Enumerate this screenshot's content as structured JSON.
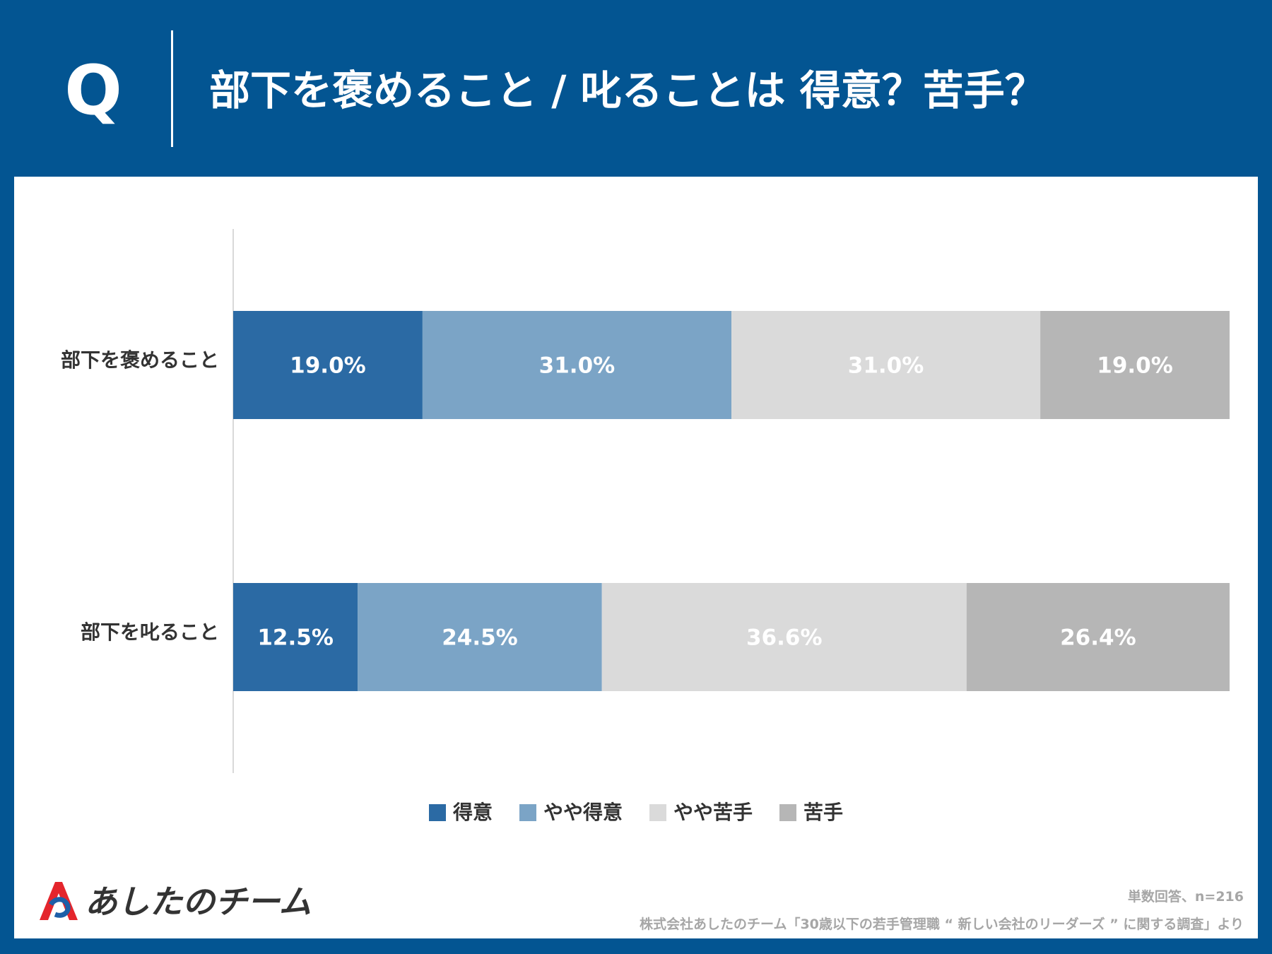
{
  "header": {
    "q_mark": "Q",
    "title": "部下を褒めること / 叱ることは 得意？苦手？"
  },
  "chart_data": {
    "type": "bar",
    "orientation": "horizontal-stacked-100",
    "categories": [
      "部下を褒めること",
      "部下を叱ること"
    ],
    "series": [
      {
        "name": "得意",
        "color": "#2b6aa4",
        "label_color": "#ffffff",
        "values": [
          19.0,
          12.5
        ],
        "labels": [
          "19.0%",
          "12.5%"
        ]
      },
      {
        "name": "やや得意",
        "color": "#7ba4c6",
        "label_color": "#ffffff",
        "values": [
          31.0,
          24.5
        ],
        "labels": [
          "31.0%",
          "24.5%"
        ]
      },
      {
        "name": "やや苦手",
        "color": "#dadada",
        "label_color": "#ffffff",
        "values": [
          31.0,
          36.6
        ],
        "labels": [
          "31.0%",
          "36.6%"
        ]
      },
      {
        "name": "苦手",
        "color": "#b6b6b6",
        "label_color": "#ffffff",
        "values": [
          19.0,
          26.4
        ],
        "labels": [
          "19.0%",
          "26.4%"
        ]
      }
    ],
    "xlim": [
      0,
      100
    ],
    "legend_position": "bottom-center"
  },
  "footer": {
    "logo_text": "あしたのチーム",
    "sample_note": "単数回答、n=216",
    "source_note": "株式会社あしたのチーム「30歳以下の若手管理職 “ 新しい会社のリーダーズ ” に関する調査」より"
  },
  "colors": {
    "header_bg": "#035592",
    "logo_red": "#e4252c",
    "logo_blue": "#1d5fa8"
  }
}
